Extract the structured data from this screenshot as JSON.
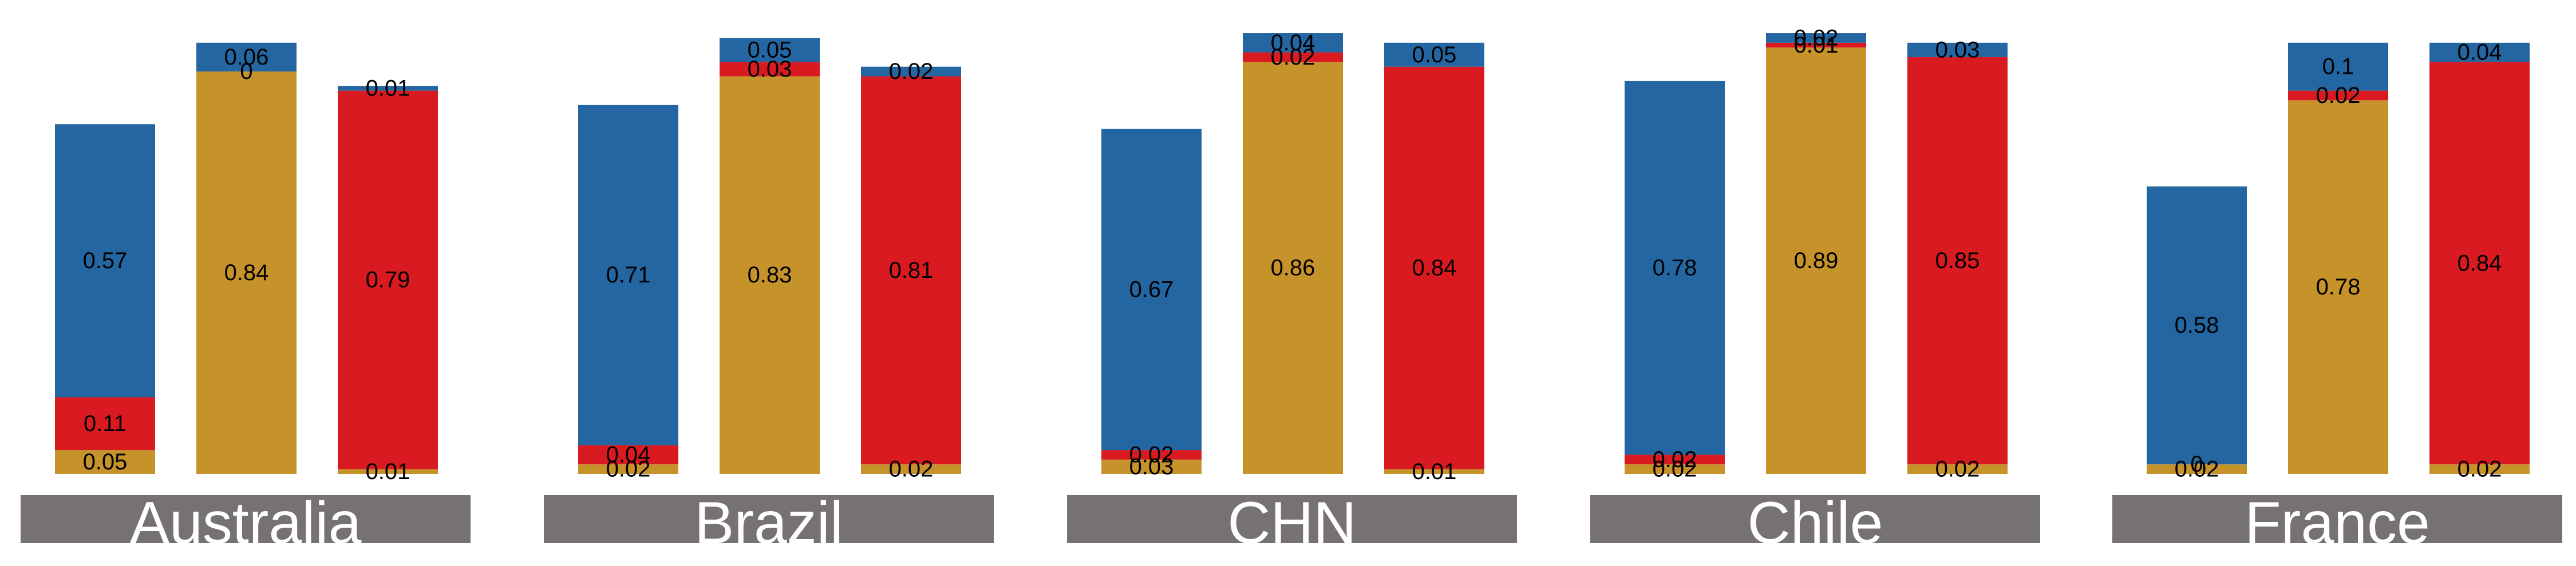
{
  "colors": {
    "blue": "#2366a2",
    "gold": "#c6922a",
    "red": "#d91a21",
    "strip": "#767271",
    "strip_text": "#ffffff",
    "label_text": "#000000"
  },
  "chart_data": {
    "type": "bar",
    "stacked": true,
    "grid": false,
    "legend": "none",
    "stack_order_bottom_to_top": [
      "gold",
      "red",
      "blue"
    ],
    "bars_per_panel": [
      "blue",
      "gold",
      "red"
    ],
    "panels": [
      {
        "title": "Australia",
        "bars": [
          {
            "dominant": "blue",
            "total": 0.73,
            "segments": [
              {
                "color": "gold",
                "value": 0.05,
                "label": "0.05"
              },
              {
                "color": "red",
                "value": 0.11,
                "label": "0.11"
              },
              {
                "color": "blue",
                "value": 0.57,
                "label": "0.57"
              }
            ]
          },
          {
            "dominant": "gold",
            "total": 0.9,
            "segments": [
              {
                "color": "gold",
                "value": 0.84,
                "label": "0.84"
              },
              {
                "color": "red",
                "value": 0.0,
                "label": "0"
              },
              {
                "color": "blue",
                "value": 0.06,
                "label": "0.06"
              }
            ]
          },
          {
            "dominant": "red",
            "total": 0.81,
            "segments": [
              {
                "color": "gold",
                "value": 0.01,
                "label": "0.01"
              },
              {
                "color": "red",
                "value": 0.79,
                "label": "0.79"
              },
              {
                "color": "blue",
                "value": 0.01,
                "label": "0.01"
              }
            ]
          }
        ]
      },
      {
        "title": "Brazil",
        "bars": [
          {
            "dominant": "blue",
            "total": 0.76,
            "segments": [
              {
                "color": "gold",
                "value": 0.02,
                "label": "0.02"
              },
              {
                "color": "red",
                "value": 0.04,
                "label": "0.04"
              },
              {
                "color": "blue",
                "value": 0.71,
                "label": "0.71"
              }
            ]
          },
          {
            "dominant": "gold",
            "total": 0.91,
            "segments": [
              {
                "color": "gold",
                "value": 0.83,
                "label": "0.83"
              },
              {
                "color": "red",
                "value": 0.03,
                "label": "0.03"
              },
              {
                "color": "blue",
                "value": 0.05,
                "label": "0.05"
              }
            ]
          },
          {
            "dominant": "red",
            "total": 0.85,
            "segments": [
              {
                "color": "gold",
                "value": 0.02,
                "label": "0.02"
              },
              {
                "color": "red",
                "value": 0.81,
                "label": "0.81"
              },
              {
                "color": "blue",
                "value": 0.02,
                "label": "0.02"
              }
            ]
          }
        ]
      },
      {
        "title": "CHN",
        "bars": [
          {
            "dominant": "blue",
            "total": 0.72,
            "segments": [
              {
                "color": "gold",
                "value": 0.03,
                "label": "0.03"
              },
              {
                "color": "red",
                "value": 0.02,
                "label": "0.02"
              },
              {
                "color": "blue",
                "value": 0.67,
                "label": "0.67"
              }
            ]
          },
          {
            "dominant": "gold",
            "total": 0.92,
            "segments": [
              {
                "color": "gold",
                "value": 0.86,
                "label": "0.86"
              },
              {
                "color": "red",
                "value": 0.02,
                "label": "0.02"
              },
              {
                "color": "blue",
                "value": 0.04,
                "label": "0.04"
              }
            ]
          },
          {
            "dominant": "red",
            "total": 0.89,
            "segments": [
              {
                "color": "gold",
                "value": 0.01,
                "label": "0.01"
              },
              {
                "color": "red",
                "value": 0.84,
                "label": "0.84"
              },
              {
                "color": "blue",
                "value": 0.05,
                "label": "0.05"
              }
            ]
          }
        ]
      },
      {
        "title": "Chile",
        "bars": [
          {
            "dominant": "blue",
            "total": 0.82,
            "segments": [
              {
                "color": "gold",
                "value": 0.02,
                "label": "0.02"
              },
              {
                "color": "red",
                "value": 0.02,
                "label": "0.02"
              },
              {
                "color": "blue",
                "value": 0.78,
                "label": "0.78"
              }
            ]
          },
          {
            "dominant": "gold",
            "total": 0.92,
            "segments": [
              {
                "color": "gold",
                "value": 0.89,
                "label": "0.89"
              },
              {
                "color": "red",
                "value": 0.01,
                "label": "0.01"
              },
              {
                "color": "blue",
                "value": 0.02,
                "label": "0.02"
              }
            ]
          },
          {
            "dominant": "red",
            "total": 0.91,
            "segments": [
              {
                "color": "gold",
                "value": 0.02,
                "label": "0.02"
              },
              {
                "color": "red",
                "value": 0.85,
                "label": "0.85"
              },
              {
                "color": "blue",
                "value": 0.03,
                "label": "0.03"
              }
            ]
          }
        ]
      },
      {
        "title": "France",
        "bars": [
          {
            "dominant": "blue",
            "total": 0.6,
            "segments": [
              {
                "color": "gold",
                "value": 0.02,
                "label": "0.02"
              },
              {
                "color": "red",
                "value": 0.0,
                "label": "0"
              },
              {
                "color": "blue",
                "value": 0.58,
                "label": "0.58"
              }
            ]
          },
          {
            "dominant": "gold",
            "total": 0.9,
            "segments": [
              {
                "color": "gold",
                "value": 0.78,
                "label": "0.78"
              },
              {
                "color": "red",
                "value": 0.02,
                "label": "0.02"
              },
              {
                "color": "blue",
                "value": 0.1,
                "label": "0.1"
              }
            ]
          },
          {
            "dominant": "red",
            "total": 0.9,
            "segments": [
              {
                "color": "gold",
                "value": 0.02,
                "label": "0.02"
              },
              {
                "color": "red",
                "value": 0.84,
                "label": "0.84"
              },
              {
                "color": "blue",
                "value": 0.04,
                "label": "0.04"
              }
            ]
          }
        ]
      }
    ]
  }
}
